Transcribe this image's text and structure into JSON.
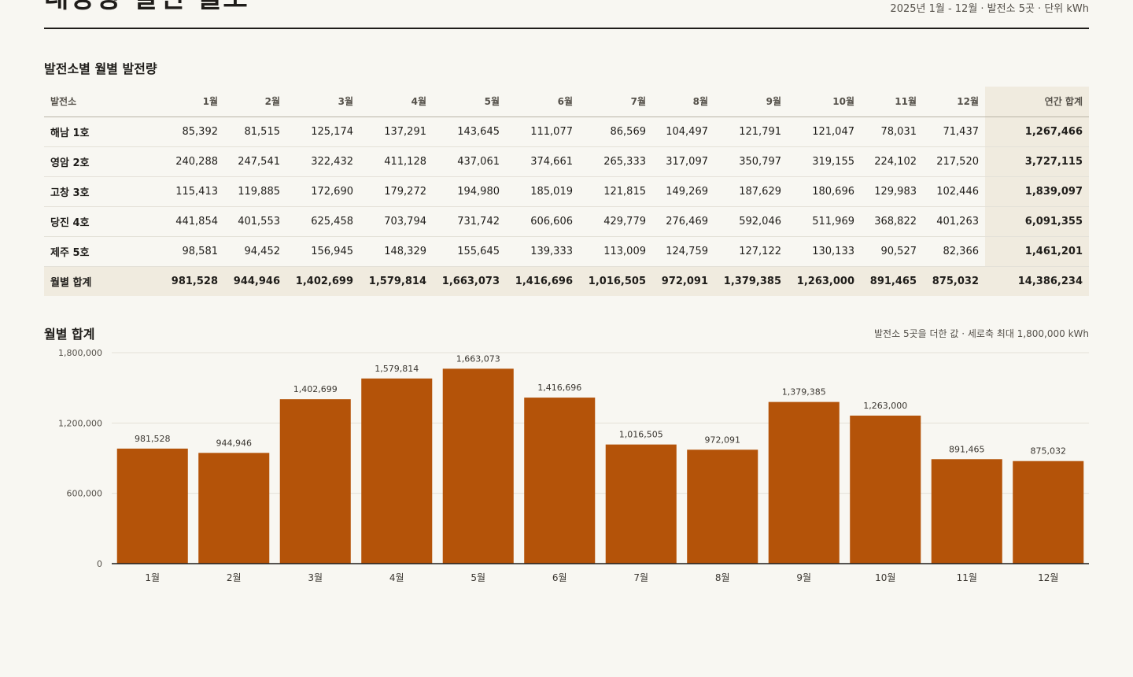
{
  "header": {
    "title": "태양광 발전 월보",
    "meta": "2025년 1월 - 12월 · 발전소 5곳 · 단위 kWh"
  },
  "table": {
    "title": "발전소별 월별 발전량",
    "plant_header": "발전소",
    "months": [
      "1월",
      "2월",
      "3월",
      "4월",
      "5월",
      "6월",
      "7월",
      "8월",
      "9월",
      "10월",
      "11월",
      "12월"
    ],
    "annual_header": "연간 합계",
    "rows": [
      {
        "name": "해남 1호",
        "values": [
          "85,392",
          "81,515",
          "125,174",
          "137,291",
          "143,645",
          "111,077",
          "86,569",
          "104,497",
          "121,791",
          "121,047",
          "78,031",
          "71,437"
        ],
        "total": "1,267,466"
      },
      {
        "name": "영암 2호",
        "values": [
          "240,288",
          "247,541",
          "322,432",
          "411,128",
          "437,061",
          "374,661",
          "265,333",
          "317,097",
          "350,797",
          "319,155",
          "224,102",
          "217,520"
        ],
        "total": "3,727,115"
      },
      {
        "name": "고창 3호",
        "values": [
          "115,413",
          "119,885",
          "172,690",
          "179,272",
          "194,980",
          "185,019",
          "121,815",
          "149,269",
          "187,629",
          "180,696",
          "129,983",
          "102,446"
        ],
        "total": "1,839,097"
      },
      {
        "name": "당진 4호",
        "values": [
          "441,854",
          "401,553",
          "625,458",
          "703,794",
          "731,742",
          "606,606",
          "429,779",
          "276,469",
          "592,046",
          "511,969",
          "368,822",
          "401,263"
        ],
        "total": "6,091,355"
      },
      {
        "name": "제주 5호",
        "values": [
          "98,581",
          "94,452",
          "156,945",
          "148,329",
          "155,645",
          "139,333",
          "113,009",
          "124,759",
          "127,122",
          "130,133",
          "90,527",
          "82,366"
        ],
        "total": "1,461,201"
      }
    ],
    "total_row": {
      "name": "월별 합계",
      "values": [
        "981,528",
        "944,946",
        "1,402,699",
        "1,579,814",
        "1,663,073",
        "1,416,696",
        "1,016,505",
        "972,091",
        "1,379,385",
        "1,263,000",
        "891,465",
        "875,032"
      ],
      "total": "14,386,234"
    }
  },
  "chart": {
    "title": "월별 합계",
    "note": "발전소 5곳을 더한 값 · 세로축 최대 1,800,000 kWh"
  },
  "chart_data": {
    "type": "bar",
    "title": "월별 합계",
    "categories": [
      "1월",
      "2월",
      "3월",
      "4월",
      "5월",
      "6월",
      "7월",
      "8월",
      "9월",
      "10월",
      "11월",
      "12월"
    ],
    "values": [
      981528,
      944946,
      1402699,
      1579814,
      1663073,
      1416696,
      1016505,
      972091,
      1379385,
      1263000,
      891465,
      875032
    ],
    "data_labels": [
      "981,528",
      "944,946",
      "1,402,699",
      "1,579,814",
      "1,663,073",
      "1,416,696",
      "1,016,505",
      "972,091",
      "1,379,385",
      "1,263,000",
      "891,465",
      "875,032"
    ],
    "ylim": [
      0,
      1800000
    ],
    "yticks": [
      0,
      600000,
      1200000,
      1800000
    ],
    "ytick_labels": [
      "0",
      "600,000",
      "1,200,000",
      "1,800,000"
    ],
    "grid": true,
    "bar_color": "#b45309"
  }
}
